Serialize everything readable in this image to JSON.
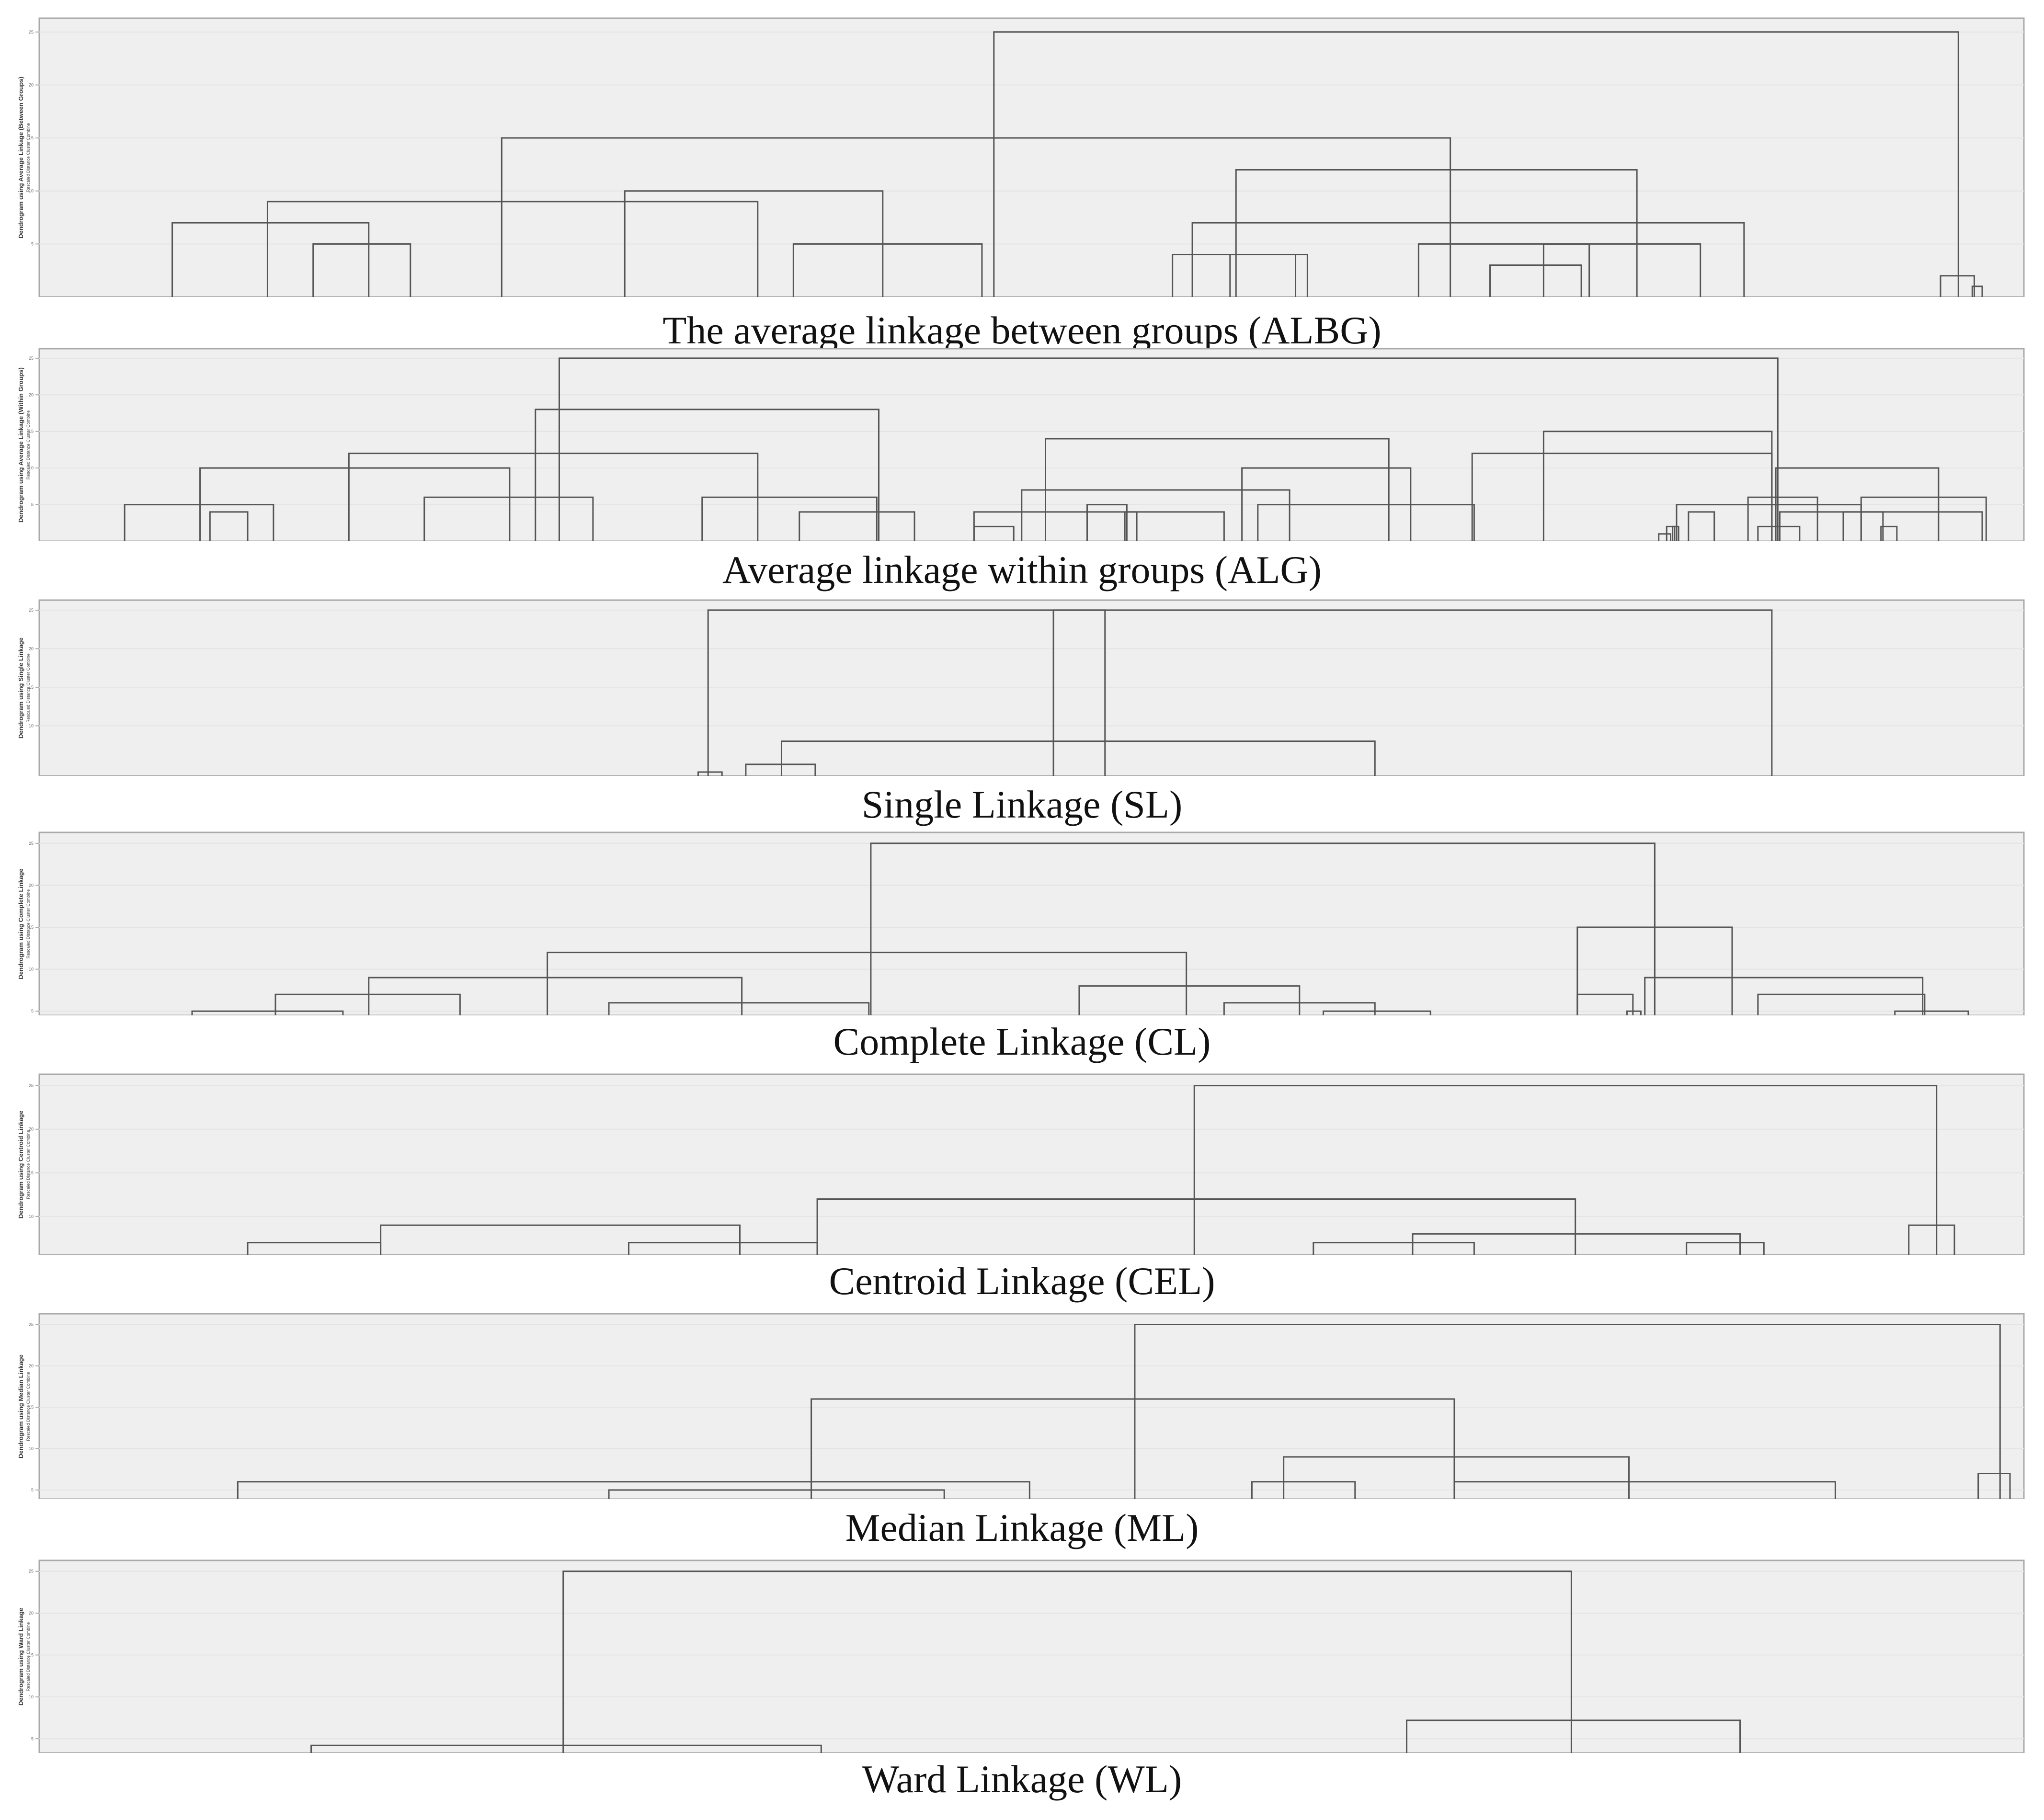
{
  "colors": {
    "plot_background": "#efefef",
    "frame": "#a9a9a9",
    "link": "#555555",
    "grid": "#e4e4e4"
  },
  "panels": [
    {
      "key": "albg",
      "caption": "The average linkage between groups (ALBG)"
    },
    {
      "key": "alg",
      "caption": "Average linkage within groups (ALG)"
    },
    {
      "key": "sl",
      "caption": "Single Linkage (SL)"
    },
    {
      "key": "cl",
      "caption": "Complete Linkage (CL)"
    },
    {
      "key": "cel",
      "caption": "Centroid Linkage (CEL)"
    },
    {
      "key": "ml",
      "caption": "Median Linkage (ML)"
    },
    {
      "key": "wl",
      "caption": "Ward Linkage (WL)"
    }
  ],
  "chart_data": [
    {
      "type": "dendrogram",
      "title": "The average linkage between groups (ALBG)",
      "ylabel": "Dendrogram using Average Linkage (Between Groups)",
      "ylabel_sub": "Rescaled Distance Cluster Combine",
      "y_ticks": [
        25,
        20,
        15,
        10,
        5
      ],
      "ylim": [
        0,
        26.3
      ],
      "xlim": [
        0,
        1000
      ],
      "merges": [
        [
          481,
          25,
          967,
          25
        ],
        [
          233,
          15,
          711,
          15
        ],
        [
          115,
          9,
          362,
          9
        ],
        [
          67,
          7,
          166,
          7
        ],
        [
          138,
          5,
          187,
          5
        ],
        [
          295,
          10,
          425,
          10
        ],
        [
          380,
          5,
          475,
          5
        ],
        [
          603,
          12,
          805,
          12
        ],
        [
          581,
          7,
          859,
          7
        ],
        [
          571,
          4,
          633,
          4
        ],
        [
          600,
          4,
          639,
          4
        ],
        [
          695,
          5,
          781,
          5
        ],
        [
          758,
          5,
          837,
          5
        ],
        [
          731,
          3,
          777,
          3
        ],
        [
          958,
          2,
          975,
          2
        ],
        [
          974,
          1,
          979,
          1
        ]
      ]
    },
    {
      "type": "dendrogram",
      "title": "Average linkage within groups (ALG)",
      "ylabel": "Dendrogram using Average Linkage (Within Groups)",
      "ylabel_sub": "Rescaled Distance Cluster Combine",
      "y_ticks": [
        25,
        20,
        15,
        10,
        5
      ],
      "ylim": [
        0,
        26.3
      ],
      "xlim": [
        0,
        1000
      ],
      "merges": [
        [
          262,
          25,
          876,
          25
        ],
        [
          250,
          18,
          423,
          18
        ],
        [
          156,
          12,
          362,
          12
        ],
        [
          81,
          10,
          237,
          10
        ],
        [
          43,
          5,
          118,
          5
        ],
        [
          86,
          4,
          105,
          4
        ],
        [
          194,
          6,
          279,
          6
        ],
        [
          334,
          6,
          422,
          6
        ],
        [
          383,
          4,
          441,
          4
        ],
        [
          507,
          14,
          680,
          14
        ],
        [
          495,
          7,
          630,
          7
        ],
        [
          471,
          4,
          553,
          4
        ],
        [
          471,
          2,
          491,
          2
        ],
        [
          528,
          5,
          548,
          5
        ],
        [
          547,
          4,
          597,
          4
        ],
        [
          614,
          5,
          723,
          5
        ],
        [
          606,
          10,
          691,
          10
        ],
        [
          722,
          12,
          873,
          12
        ],
        [
          758,
          15,
          873,
          15
        ],
        [
          825,
          5,
          918,
          5
        ],
        [
          824,
          2,
          823,
          2
        ],
        [
          831,
          4,
          844,
          4
        ],
        [
          820,
          2,
          826,
          2
        ],
        [
          816,
          1,
          822,
          1
        ],
        [
          861,
          6,
          896,
          6
        ],
        [
          875,
          10,
          957,
          10
        ],
        [
          877,
          4,
          929,
          4
        ],
        [
          866,
          2,
          887,
          2
        ],
        [
          918,
          6,
          981,
          6
        ],
        [
          909,
          4,
          979,
          4
        ],
        [
          928,
          2,
          936,
          2
        ]
      ]
    },
    {
      "type": "dendrogram",
      "title": "Single Linkage (SL)",
      "ylabel": "Dendrogram using Single Linkage",
      "ylabel_sub": "Rescaled Distance Cluster Combine",
      "y_ticks": [
        25,
        20,
        15,
        10
      ],
      "ylim": [
        3.5,
        26.3
      ],
      "xlim": [
        0,
        1000
      ],
      "merges": [
        [
          337,
          25,
          873,
          25
        ],
        [
          511,
          25,
          537,
          25
        ],
        [
          374,
          8,
          673,
          8
        ],
        [
          332,
          4,
          344,
          4
        ],
        [
          356,
          5,
          391,
          5
        ]
      ]
    },
    {
      "type": "dendrogram",
      "title": "Complete Linkage (CL)",
      "ylabel": "Dendrogram using Complete Linkage",
      "ylabel_sub": "Rescaled Distance Cluster Combine",
      "y_ticks": [
        25,
        20,
        15,
        10,
        5
      ],
      "ylim": [
        4.5,
        26.3
      ],
      "xlim": [
        0,
        1000
      ],
      "merges": [
        [
          419,
          25,
          814,
          25
        ],
        [
          256,
          12,
          578,
          12
        ],
        [
          166,
          9,
          354,
          9
        ],
        [
          119,
          7,
          212,
          7
        ],
        [
          77,
          5,
          153,
          5
        ],
        [
          287,
          6,
          418,
          6
        ],
        [
          524,
          8,
          635,
          8
        ],
        [
          597,
          6,
          673,
          6
        ],
        [
          647,
          5,
          701,
          5
        ],
        [
          775,
          15,
          853,
          15
        ],
        [
          775,
          7,
          803,
          7
        ],
        [
          809,
          9,
          949,
          9
        ],
        [
          800,
          5,
          807,
          5
        ],
        [
          866,
          7,
          950,
          7
        ],
        [
          935,
          5,
          972,
          5
        ]
      ]
    },
    {
      "type": "dendrogram",
      "title": "Centroid Linkage (CEL)",
      "ylabel": "Dendrogram using Centroid Linkage",
      "ylabel_sub": "Rescaled Distance Cluster Combine",
      "y_ticks": [
        25,
        20,
        15,
        10
      ],
      "ylim": [
        5.6,
        26.3
      ],
      "xlim": [
        0,
        1000
      ],
      "merges": [
        [
          582,
          25,
          956,
          25
        ],
        [
          392,
          12,
          774,
          12
        ],
        [
          172,
          9,
          353,
          9
        ],
        [
          105,
          7,
          172,
          7
        ],
        [
          297,
          7,
          392,
          7
        ],
        [
          692,
          8,
          857,
          8
        ],
        [
          642,
          7,
          723,
          7
        ],
        [
          830,
          7,
          869,
          7
        ],
        [
          942,
          9,
          965,
          9
        ]
      ]
    },
    {
      "type": "dendrogram",
      "title": "Median Linkage (ML)",
      "ylabel": "Dendrogram using Median Linkage",
      "ylabel_sub": "Rescaled Distance Cluster Combine",
      "y_ticks": [
        25,
        20,
        15,
        10,
        5
      ],
      "ylim": [
        3.9,
        26.3
      ],
      "xlim": [
        0,
        1000
      ],
      "merges": [
        [
          552,
          25,
          988,
          25
        ],
        [
          389,
          16,
          713,
          16
        ],
        [
          100,
          6,
          499,
          6
        ],
        [
          287,
          5,
          456,
          5
        ],
        [
          627,
          9,
          801,
          9
        ],
        [
          611,
          6,
          663,
          6
        ],
        [
          713,
          6,
          905,
          6
        ],
        [
          977,
          7,
          993,
          7
        ]
      ]
    },
    {
      "type": "dendrogram",
      "title": "Ward Linkage (WL)",
      "ylabel": "Dendrogram using Ward Linkage",
      "ylabel_sub": "Rescaled Distance Cluster Combine",
      "y_ticks": [
        25,
        20,
        15,
        10,
        5
      ],
      "ylim": [
        3.3,
        26.3
      ],
      "xlim": [
        0,
        1000
      ],
      "merges": [
        [
          264,
          25,
          772,
          25
        ],
        [
          137,
          4.2,
          394,
          4.2
        ],
        [
          689,
          7.2,
          857,
          7.2
        ]
      ]
    }
  ]
}
